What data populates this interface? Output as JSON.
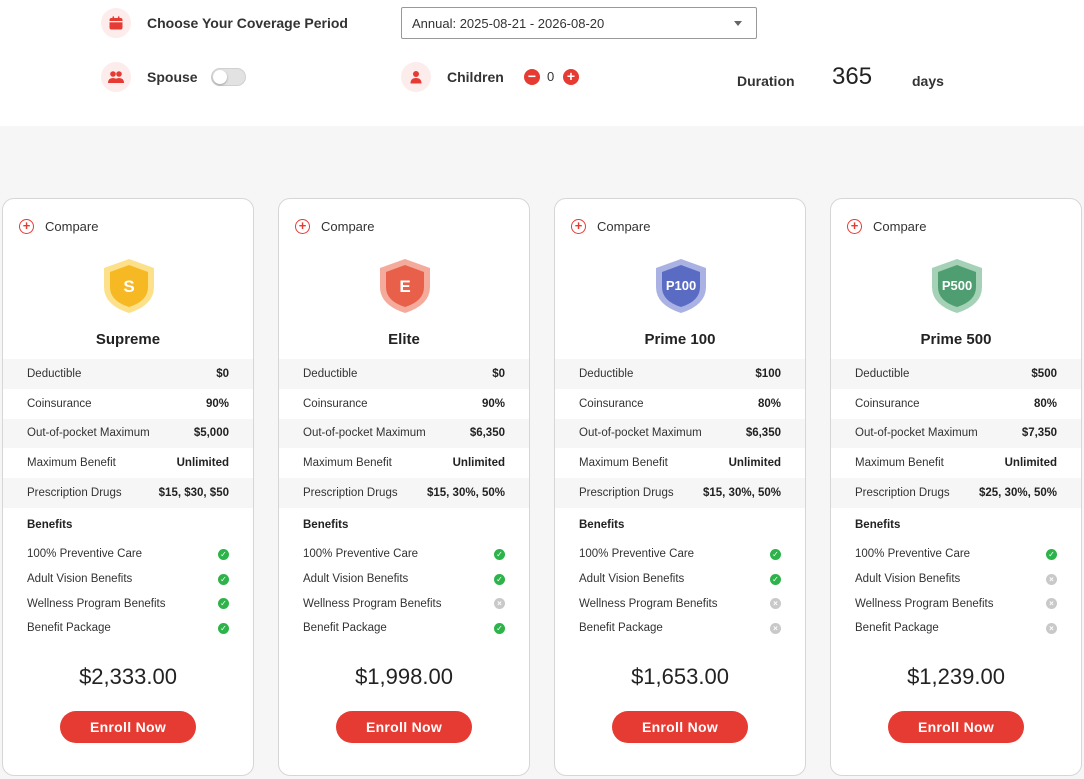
{
  "header": {
    "coverage_label": "Choose Your Coverage Period",
    "coverage_value": "Annual: 2025-08-21 - 2026-08-20",
    "spouse_label": "Spouse",
    "children_label": "Children",
    "children_count": "0",
    "minus": "−",
    "plus": "+",
    "duration_label": "Duration",
    "duration_value": "365",
    "duration_unit": "days"
  },
  "card_common": {
    "compare_label": "Compare",
    "compare_icon": "+",
    "benefits_title": "Benefits",
    "enroll_label": "Enroll Now",
    "row_labels": [
      "Deductible",
      "Coinsurance",
      "Out-of-pocket Maximum",
      "Maximum Benefit",
      "Prescription Drugs"
    ],
    "benefit_labels": [
      "100% Preventive Care",
      "Adult Vision Benefits",
      "Wellness Program Benefits",
      "Benefit Package"
    ]
  },
  "colors": {
    "accent": "#e63b33",
    "check_yes": "#2db34a",
    "check_no": "#c9c9c9"
  },
  "plans": [
    {
      "name": "Supreme",
      "badge": "S",
      "badge_color": "#f6b924",
      "badge_light": "#fde08a",
      "values": [
        "$0",
        "90%",
        "$5,000",
        "Unlimited",
        "$15, $30, $50"
      ],
      "benefits": [
        true,
        true,
        true,
        true
      ],
      "price": "$2,333.00"
    },
    {
      "name": "Elite",
      "badge": "E",
      "badge_color": "#e9604a",
      "badge_light": "#f4ab9c",
      "values": [
        "$0",
        "90%",
        "$6,350",
        "Unlimited",
        "$15, 30%, 50%"
      ],
      "benefits": [
        true,
        true,
        false,
        true
      ],
      "price": "$1,998.00"
    },
    {
      "name": "Prime 100",
      "badge": "P100",
      "badge_color": "#5a6bc4",
      "badge_light": "#a9b2e3",
      "values": [
        "$100",
        "80%",
        "$6,350",
        "Unlimited",
        "$15, 30%, 50%"
      ],
      "benefits": [
        true,
        true,
        false,
        false
      ],
      "price": "$1,653.00"
    },
    {
      "name": "Prime 500",
      "badge": "P500",
      "badge_color": "#4f9e72",
      "badge_light": "#a5d1b6",
      "values": [
        "$500",
        "80%",
        "$7,350",
        "Unlimited",
        "$25, 30%, 50%"
      ],
      "benefits": [
        true,
        false,
        false,
        false
      ],
      "price": "$1,239.00"
    }
  ]
}
